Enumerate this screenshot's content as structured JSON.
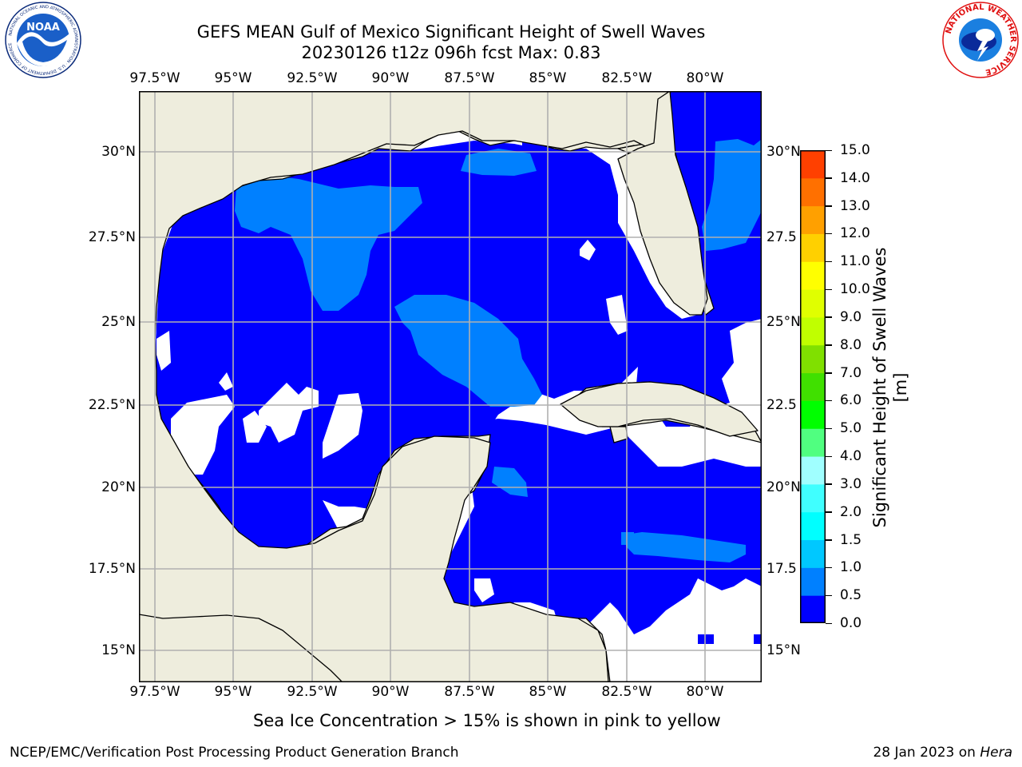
{
  "title": {
    "line1": "GEFS MEAN Gulf of Mexico Significant Height of Swell Waves",
    "line2": "20230126 t12z 096h fcst   Max: 0.83"
  },
  "axes": {
    "lon_labels": [
      "97.5°W",
      "95°W",
      "92.5°W",
      "90°W",
      "87.5°W",
      "85°W",
      "82.5°W",
      "80°W"
    ],
    "lat_labels_left": [
      "30°N",
      "27.5°N",
      "25°N",
      "22.5°N",
      "20°N",
      "17.5°N",
      "15°N"
    ],
    "lat_labels_right": [
      "30°N",
      "27.5",
      "25°N",
      "22.5",
      "20°N",
      "17.5",
      "15°N"
    ]
  },
  "colorbar": {
    "label": "Significant Height of Swell Waves [m]",
    "ticks": [
      "0.0",
      "0.5",
      "1.0",
      "1.5",
      "2.0",
      "3.0",
      "4.0",
      "5.0",
      "6.0",
      "7.0",
      "8.0",
      "9.0",
      "10.0",
      "11.0",
      "12.0",
      "13.0",
      "14.0",
      "15.0"
    ],
    "colors": [
      "#0000ff",
      "#0080ff",
      "#00c8ff",
      "#00ffff",
      "#40ffff",
      "#a0ffff",
      "#50ff80",
      "#00ff00",
      "#40e000",
      "#80e000",
      "#c0ff00",
      "#e0ff00",
      "#ffff00",
      "#ffd000",
      "#ffa000",
      "#ff7000",
      "#ff4000",
      "#ff0000"
    ]
  },
  "colors": {
    "land": "#eeeddd",
    "water_low": "#0000ff",
    "water_mid": "#0080ff",
    "grid": "#b0b0b0"
  },
  "footer": {
    "note": "Sea Ice Concentration > 15% is shown in pink to yellow",
    "left": "NCEP/EMC/Verification Post Processing Product Generation Branch",
    "right_date": "28 Jan 2023 on ",
    "right_machine": "Hera"
  },
  "logos": {
    "noaa_text": "NOAA",
    "noaa_ring": "NATIONAL OCEANIC AND ATMOSPHERIC ADMINISTRATION · U.S. DEPARTMENT OF COMMERCE",
    "nws_ring": "NATIONAL WEATHER SERVICE"
  }
}
